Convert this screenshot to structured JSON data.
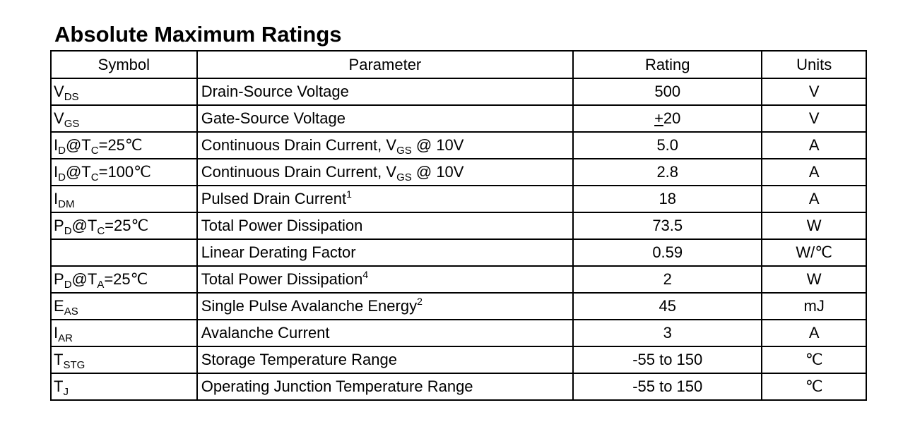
{
  "title": "Absolute Maximum Ratings",
  "table": {
    "header": [
      "Symbol",
      "Parameter",
      "Rating",
      "Units"
    ],
    "rows": [
      [
        [
          "V",
          {
            "sub": "DS"
          }
        ],
        [
          "Drain-Source Voltage"
        ],
        [
          "500"
        ],
        [
          "V"
        ]
      ],
      [
        [
          "V",
          {
            "sub": "GS"
          }
        ],
        [
          "Gate-Source Voltage"
        ],
        [
          {
            "u": "+"
          },
          "20"
        ],
        [
          "V"
        ]
      ],
      [
        [
          "I",
          {
            "sub": "D"
          },
          "@T",
          {
            "sub": "C"
          },
          "=25℃"
        ],
        [
          "Continuous Drain Current, V",
          {
            "sub": "GS"
          },
          " @ 10V"
        ],
        [
          "5.0"
        ],
        [
          "A"
        ]
      ],
      [
        [
          "I",
          {
            "sub": "D"
          },
          "@T",
          {
            "sub": "C"
          },
          "=100℃"
        ],
        [
          "Continuous Drain Current, V",
          {
            "sub": "GS"
          },
          " @ 10V"
        ],
        [
          "2.8"
        ],
        [
          "A"
        ]
      ],
      [
        [
          "I",
          {
            "sub": "DM"
          }
        ],
        [
          "Pulsed Drain Current",
          {
            "sup": "1"
          }
        ],
        [
          "18"
        ],
        [
          "A"
        ]
      ],
      [
        [
          "P",
          {
            "sub": "D"
          },
          "@T",
          {
            "sub": "C"
          },
          "=25℃"
        ],
        [
          "Total Power Dissipation"
        ],
        [
          "73.5"
        ],
        [
          "W"
        ]
      ],
      [
        [],
        [
          "Linear Derating Factor"
        ],
        [
          "0.59"
        ],
        [
          "W/℃"
        ]
      ],
      [
        [
          "P",
          {
            "sub": "D"
          },
          "@T",
          {
            "sub": "A"
          },
          "=25℃"
        ],
        [
          "Total Power Dissipation",
          {
            "sup": "4"
          }
        ],
        [
          "2"
        ],
        [
          "W"
        ]
      ],
      [
        [
          "E",
          {
            "sub": "AS"
          }
        ],
        [
          "Single Pulse Avalanche Energy",
          {
            "sup": "2"
          }
        ],
        [
          "45"
        ],
        [
          "mJ"
        ]
      ],
      [
        [
          "I",
          {
            "sub": "AR"
          }
        ],
        [
          "Avalanche Current"
        ],
        [
          "3"
        ],
        [
          "A"
        ]
      ],
      [
        [
          "T",
          {
            "sub": "STG"
          }
        ],
        [
          "Storage Temperature Range"
        ],
        [
          "-55 to 150"
        ],
        [
          "℃"
        ]
      ],
      [
        [
          "T",
          {
            "sub": "J"
          }
        ],
        [
          "Operating Junction Temperature Range"
        ],
        [
          "-55 to 150"
        ],
        [
          "℃"
        ]
      ]
    ]
  }
}
